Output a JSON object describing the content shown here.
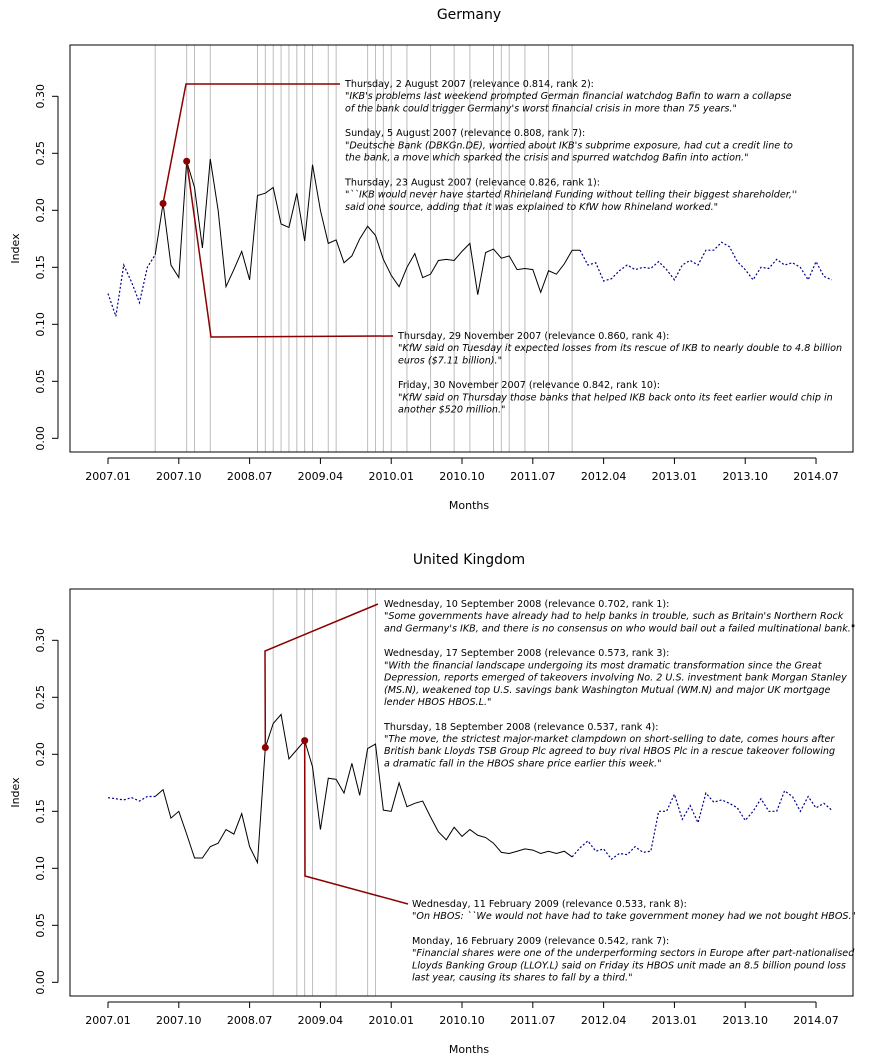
{
  "chart_data": [
    {
      "type": "line",
      "title": "Germany",
      "xlabel": "Months",
      "ylabel": "Index",
      "categories": [
        "2007.01",
        null,
        null,
        null,
        null,
        null,
        null,
        null,
        null,
        "2007.10",
        null,
        null,
        null,
        null,
        null,
        null,
        null,
        null,
        "2008.07",
        null,
        null,
        null,
        null,
        null,
        null,
        null,
        null,
        "2009.04",
        null,
        null,
        null,
        null,
        null,
        null,
        null,
        null,
        "2010.01",
        null,
        null,
        null,
        null,
        null,
        null,
        null,
        null,
        "2010.10",
        null,
        null,
        null,
        null,
        null,
        null,
        null,
        null,
        "2011.07",
        null,
        null,
        null,
        null,
        null,
        null,
        null,
        null,
        "2012.04",
        null,
        null,
        null,
        null,
        null,
        null,
        null,
        null,
        "2013.01",
        null,
        null,
        null,
        null,
        null,
        null,
        null,
        null,
        "2013.10",
        null,
        null,
        null,
        null,
        null,
        null,
        null,
        null,
        "2014.07",
        null,
        null
      ],
      "series": [
        {
          "color": "#00008b",
          "dashed": true,
          "values": [
            0.127,
            0.107,
            0.152,
            0.137,
            0.119,
            0.15,
            0.161,
            null,
            null,
            null,
            null,
            null,
            null,
            null,
            null,
            null,
            null,
            null,
            null,
            null,
            null,
            null,
            null,
            null,
            null,
            null,
            null,
            null,
            null,
            null,
            null,
            null,
            null,
            null,
            null,
            null,
            null,
            null,
            null,
            null,
            null,
            null,
            null,
            null,
            null,
            null,
            null,
            null,
            null,
            null,
            null,
            null,
            null,
            null,
            null,
            null,
            null,
            null,
            null,
            null,
            0.165,
            0.152,
            0.154,
            0.138,
            0.14,
            0.147,
            0.152,
            0.148,
            0.15,
            0.149,
            0.155,
            0.148,
            0.139,
            0.152,
            0.156,
            0.152,
            0.165,
            0.165,
            0.172,
            0.168,
            0.155,
            0.148,
            0.139,
            0.15,
            0.149,
            0.157,
            0.152,
            0.154,
            0.15,
            0.139,
            0.155,
            0.142,
            0.139
          ]
        },
        {
          "color": "#000000",
          "dashed": false,
          "values": [
            null,
            null,
            null,
            null,
            null,
            null,
            0.161,
            0.206,
            0.152,
            0.141,
            0.243,
            0.22,
            0.167,
            0.245,
            0.2,
            0.133,
            0.148,
            0.164,
            0.139,
            0.213,
            0.215,
            0.22,
            0.188,
            0.185,
            0.215,
            0.173,
            0.24,
            0.2,
            0.171,
            0.174,
            0.154,
            0.16,
            0.175,
            0.186,
            0.178,
            0.157,
            0.143,
            0.133,
            0.15,
            0.162,
            0.141,
            0.144,
            0.156,
            0.157,
            0.156,
            0.164,
            0.171,
            0.126,
            0.163,
            0.166,
            0.158,
            0.16,
            0.148,
            0.149,
            0.148,
            0.128,
            0.147,
            0.144,
            0.153,
            0.165,
            0.165,
            null,
            null,
            null,
            null,
            null,
            null,
            null,
            null,
            null,
            null,
            null,
            null,
            null,
            null,
            null,
            null,
            null,
            null,
            null,
            null,
            null,
            null,
            null,
            null,
            null,
            null,
            null,
            null,
            null,
            null,
            null,
            null
          ]
        }
      ],
      "ylim": [
        -0.012,
        0.345
      ],
      "yticks": [
        {
          "value": 0,
          "label": "0.00"
        },
        0.05,
        {
          "value": 0.1,
          "label": "0.10"
        },
        0.15,
        {
          "value": 0.2,
          "label": "0.20"
        },
        0.25,
        {
          "value": 0.3,
          "label": "0.30"
        }
      ],
      "vlines": [
        6,
        10,
        11,
        13,
        19,
        20,
        21,
        22,
        23,
        24,
        25,
        26,
        28,
        29,
        33,
        34,
        35,
        36,
        38,
        41,
        44,
        46,
        49,
        50,
        51,
        53,
        56,
        59
      ],
      "marker_color": "#8b0000",
      "annotations": [
        {
          "at": 7,
          "series": 1,
          "texts": [
            {
              "heading": "Thursday, 2 August 2007 (relevance 0.814, rank 2):",
              "quote": [
                "\"IKB's problems last weekend prompted German financial watchdog Bafin to warn a collapse",
                "of the bank could trigger Germany's worst financial crisis in more than 75 years.\""
              ]
            },
            {
              "heading": "Sunday, 5 August 2007 (relevance 0.808, rank 7):",
              "quote": [
                "\"Deutsche Bank (DBKGn.DE), worried about IKB's subprime exposure, had cut a credit line to",
                "the bank, a move which sparked the crisis and spurred watchdog Bafin into action.\""
              ]
            },
            {
              "heading": "Thursday, 23 August 2007 (relevance 0.826, rank 1):",
              "quote": [
                "\"``IKB would never have started Rhineland Funding without telling their biggest shareholder,''",
                "said one source, adding that it was explained to KfW how Rhineland worked.\""
              ]
            }
          ]
        },
        {
          "at": 10,
          "series": 1,
          "texts": [
            {
              "heading": "Thursday, 29 November 2007 (relevance 0.860, rank 4):",
              "quote": [
                "\"KfW said on Tuesday it expected losses from its rescue of IKB to nearly double to 4.8 billion",
                "euros ($7.11 billion).\""
              ]
            },
            {
              "heading": "Friday, 30 November 2007 (relevance 0.842, rank 10):",
              "quote": [
                "\"KfW said on Thursday those banks that helped IKB back onto its feet earlier would chip in",
                "another $520 million.\""
              ]
            }
          ]
        }
      ]
    },
    {
      "type": "line",
      "title": "United Kingdom",
      "xlabel": "Months",
      "ylabel": "Index",
      "categories": [
        "2007.01",
        null,
        null,
        null,
        null,
        null,
        null,
        null,
        null,
        "2007.10",
        null,
        null,
        null,
        null,
        null,
        null,
        null,
        null,
        "2008.07",
        null,
        null,
        null,
        null,
        null,
        null,
        null,
        null,
        "2009.04",
        null,
        null,
        null,
        null,
        null,
        null,
        null,
        null,
        "2010.01",
        null,
        null,
        null,
        null,
        null,
        null,
        null,
        null,
        "2010.10",
        null,
        null,
        null,
        null,
        null,
        null,
        null,
        null,
        "2011.07",
        null,
        null,
        null,
        null,
        null,
        null,
        null,
        null,
        "2012.04",
        null,
        null,
        null,
        null,
        null,
        null,
        null,
        null,
        "2013.01",
        null,
        null,
        null,
        null,
        null,
        null,
        null,
        null,
        "2013.10",
        null,
        null,
        null,
        null,
        null,
        null,
        null,
        null,
        "2014.07",
        null,
        null
      ],
      "series": [
        {
          "color": "#00008b",
          "dashed": true,
          "values": [
            0.162,
            0.161,
            0.16,
            0.162,
            0.159,
            0.163,
            0.163,
            null,
            null,
            null,
            null,
            null,
            null,
            null,
            null,
            null,
            null,
            null,
            null,
            null,
            null,
            null,
            null,
            null,
            null,
            null,
            null,
            null,
            null,
            null,
            null,
            null,
            null,
            null,
            null,
            null,
            null,
            null,
            null,
            null,
            null,
            null,
            null,
            null,
            null,
            null,
            null,
            null,
            null,
            null,
            null,
            null,
            null,
            null,
            null,
            null,
            null,
            null,
            null,
            0.11,
            0.118,
            0.124,
            0.115,
            0.117,
            0.108,
            0.113,
            0.112,
            0.119,
            0.114,
            0.115,
            0.15,
            0.15,
            0.165,
            0.143,
            0.155,
            0.14,
            0.166,
            0.158,
            0.16,
            0.157,
            0.153,
            0.142,
            0.15,
            0.161,
            0.15,
            0.15,
            0.168,
            0.163,
            0.15,
            0.163,
            0.153,
            0.157,
            0.151
          ]
        },
        {
          "color": "#000000",
          "dashed": false,
          "values": [
            null,
            null,
            null,
            null,
            null,
            null,
            0.163,
            0.169,
            0.144,
            0.15,
            0.13,
            0.109,
            0.109,
            0.119,
            0.122,
            0.134,
            0.13,
            0.148,
            0.119,
            0.105,
            0.206,
            0.227,
            0.235,
            0.196,
            0.204,
            0.212,
            0.189,
            0.134,
            0.179,
            0.178,
            0.166,
            0.192,
            0.164,
            0.205,
            0.209,
            0.151,
            0.15,
            0.175,
            0.154,
            0.157,
            0.159,
            0.145,
            0.132,
            0.125,
            0.136,
            0.128,
            0.134,
            0.129,
            0.127,
            0.122,
            0.114,
            0.113,
            0.115,
            0.117,
            0.116,
            0.113,
            0.115,
            0.113,
            0.115,
            0.11,
            null,
            null,
            null,
            null,
            null,
            null,
            null,
            null,
            null,
            null,
            null,
            null,
            null,
            null,
            null,
            null,
            null,
            null,
            null,
            null,
            null,
            null,
            null,
            null,
            null,
            null,
            null,
            null,
            null,
            null,
            null,
            null,
            null
          ]
        }
      ],
      "ylim": [
        -0.012,
        0.345
      ],
      "yticks": [
        {
          "value": 0,
          "label": "0.00"
        },
        0.05,
        {
          "value": 0.1,
          "label": "0.10"
        },
        0.15,
        {
          "value": 0.2,
          "label": "0.20"
        },
        0.25,
        {
          "value": 0.3,
          "label": "0.30"
        }
      ],
      "vlines": [
        21,
        24,
        25,
        26,
        29,
        33,
        34
      ],
      "marker_color": "#8b0000",
      "annotations": [
        {
          "at": 20,
          "series": 1,
          "texts": [
            {
              "heading": "Wednesday, 10 September 2008 (relevance 0.702, rank 1):",
              "quote": [
                "\"Some governments have already had to help banks in trouble, such as Britain's Northern Rock",
                "and Germany's IKB, and there is no consensus on who would bail out a failed multinational bank.\""
              ]
            },
            {
              "heading": "Wednesday, 17 September 2008 (relevance 0.573, rank 3):",
              "quote": [
                "\"With the financial landscape undergoing its most dramatic transformation since the Great",
                "Depression, reports emerged of takeovers involving No. 2 U.S. investment bank Morgan Stanley",
                "(MS.N), weakened top U.S. savings bank Washington Mutual (WM.N) and major UK mortgage",
                "lender HBOS HBOS.L.\""
              ]
            },
            {
              "heading": "Thursday, 18 September 2008 (relevance 0.537, rank 4):",
              "quote": [
                "\"The move, the strictest major-market clampdown on short-selling to date, comes hours after",
                "British bank Lloyds TSB Group Plc agreed to buy rival HBOS Plc in a rescue takeover following",
                "a dramatic fall in the HBOS share price earlier this week.\""
              ]
            }
          ]
        },
        {
          "at": 25,
          "series": 1,
          "texts": [
            {
              "heading": "Wednesday, 11 February 2009 (relevance 0.533, rank 8):",
              "quote": [
                "\"On HBOS: ``We would not have had to take government money had we not bought HBOS.\""
              ]
            },
            {
              "heading": "Monday, 16 February 2009 (relevance 0.542, rank 7):",
              "quote": [
                "\"Financial shares were one of the underperforming sectors in Europe after part-nationalised",
                "Lloyds Banking Group (LLOY.L) said on Friday its HBOS unit made an 8.5 billion pound loss",
                "last year, causing its shares to fall by a third.\""
              ]
            }
          ]
        }
      ]
    }
  ]
}
